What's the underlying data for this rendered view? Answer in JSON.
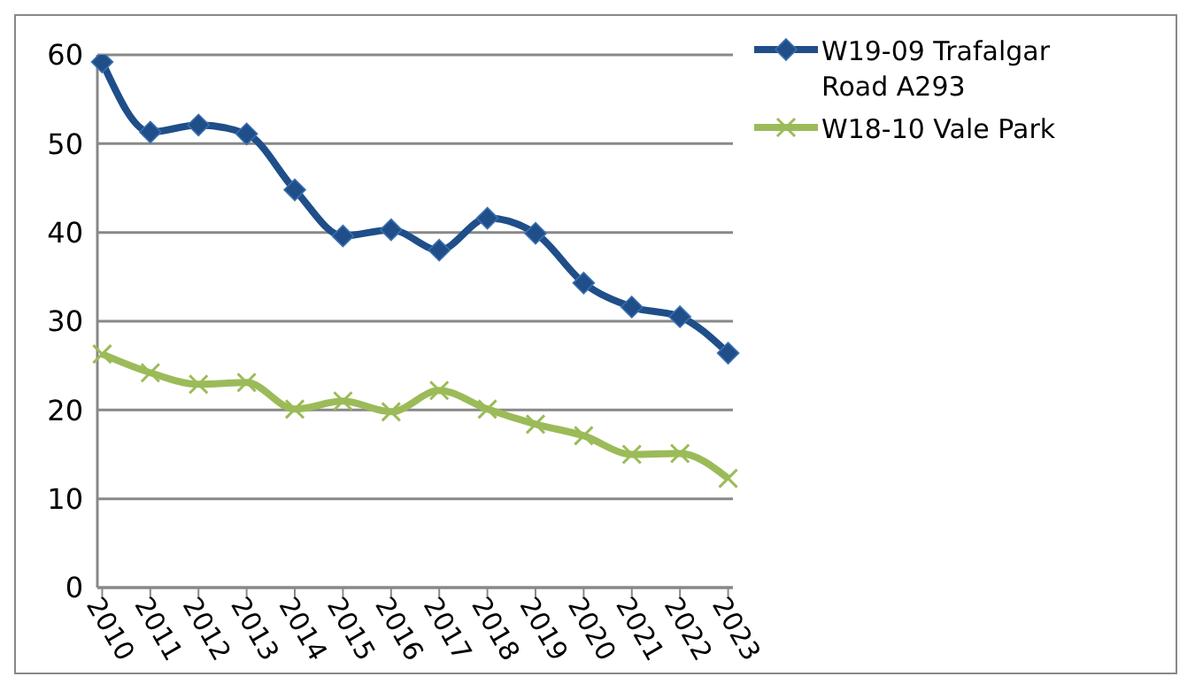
{
  "chart_data": {
    "type": "line",
    "categories": [
      "2010",
      "2011",
      "2012",
      "2013",
      "2014",
      "2015",
      "2016",
      "2017",
      "2018",
      "2019",
      "2020",
      "2021",
      "2022",
      "2023"
    ],
    "series": [
      {
        "name": "W19-09 Trafalgar Road A293",
        "color": "#1f4e89",
        "marker": "diamond",
        "values": [
          59.2,
          51.3,
          52.1,
          51.1,
          44.8,
          39.6,
          40.3,
          38.0,
          41.6,
          39.9,
          34.3,
          31.6,
          30.5,
          26.4
        ]
      },
      {
        "name": "W18-10 Vale Park",
        "color": "#9bbb59",
        "marker": "cross",
        "values": [
          26.3,
          24.2,
          22.9,
          23.1,
          20.1,
          21.0,
          19.8,
          22.2,
          20.1,
          18.4,
          17.1,
          15.0,
          15.1,
          12.3
        ]
      }
    ],
    "ylim": [
      0,
      60
    ],
    "yticks": [
      0,
      10,
      20,
      30,
      40,
      50,
      60
    ],
    "grid": "y",
    "legend": "top right",
    "line_style": "solid"
  }
}
